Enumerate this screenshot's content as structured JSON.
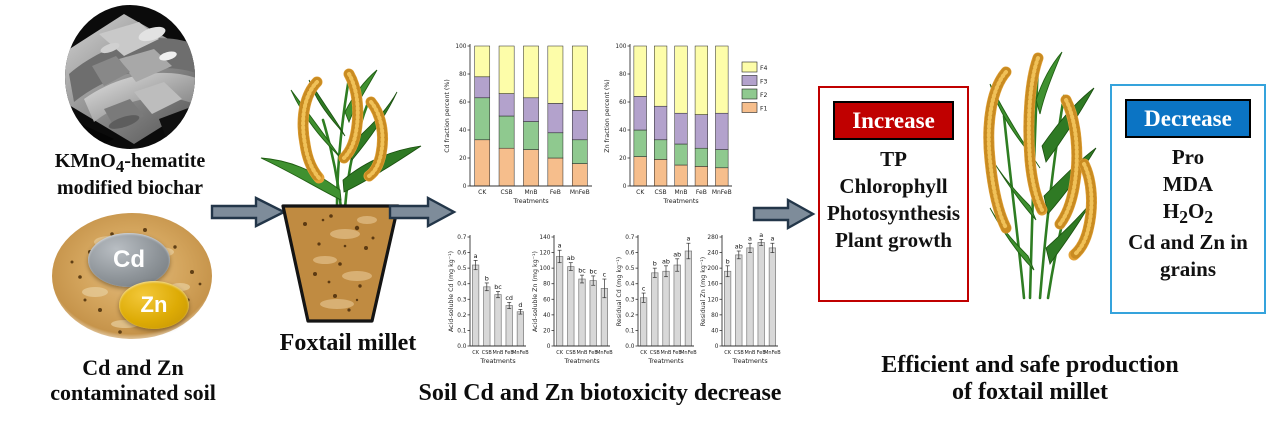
{
  "left_panel": {
    "biochar_label_line1": "KMnO<sub>4</sub>-hematite",
    "biochar_label_line2": "modified biochar",
    "cd_badge": "Cd",
    "zn_badge": "Zn",
    "soil_label_line1": "Cd and Zn",
    "soil_label_line2": "contaminated soil"
  },
  "middle": {
    "plant_label": "Foxtail millet",
    "charts_caption": "Soil Cd and Zn biotoxicity decrease"
  },
  "right": {
    "increase": {
      "title": "Increase",
      "items": [
        "TP",
        "Chlorophyll",
        "Photosynthesis",
        "Plant growth"
      ]
    },
    "decrease": {
      "title": "Decrease",
      "items": [
        "Pro",
        "MDA",
        "H<sub>2</sub>O<sub>2</sub>",
        "Cd and Zn in grains"
      ]
    },
    "caption_line1": "Efficient and safe production",
    "caption_line2": "of foxtail millet"
  },
  "colors": {
    "increase_accent": "#C00000",
    "decrease_border": "#35A3DC",
    "decrease_button": "#0B74C4",
    "arrow_fill": "#7E8C9A",
    "arrow_stroke": "#233649",
    "bar_fill": "#D8D8D8"
  },
  "chart_data": [
    {
      "id": "cd_fraction",
      "type": "stacked_bar",
      "ylabel": "Cd fraction percent (%)",
      "xlabel": "Treatments",
      "ylim": [
        0,
        100
      ],
      "yticks": [
        0,
        20,
        40,
        60,
        80,
        100
      ],
      "categories": [
        "CK",
        "CSB",
        "MnB",
        "FeB",
        "MnFeB"
      ],
      "series": [
        {
          "name": "F1",
          "color": "#F6BE8C",
          "values": [
            33,
            27,
            26,
            20,
            16
          ]
        },
        {
          "name": "F2",
          "color": "#8FC98F",
          "values": [
            30,
            23,
            20,
            18,
            17
          ]
        },
        {
          "name": "F3",
          "color": "#B3A2CC",
          "values": [
            15,
            16,
            17,
            21,
            21
          ]
        },
        {
          "name": "F4",
          "color": "#FDFDA9",
          "values": [
            22,
            34,
            37,
            41,
            46
          ]
        }
      ],
      "legend": false
    },
    {
      "id": "zn_fraction",
      "type": "stacked_bar",
      "ylabel": "Zn fraction percent (%)",
      "xlabel": "Treatments",
      "ylim": [
        0,
        100
      ],
      "yticks": [
        0,
        20,
        40,
        60,
        80,
        100
      ],
      "categories": [
        "CK",
        "CSB",
        "MnB",
        "FeB",
        "MnFeB"
      ],
      "series": [
        {
          "name": "F1",
          "color": "#F6BE8C",
          "values": [
            21,
            19,
            15,
            14,
            13
          ]
        },
        {
          "name": "F2",
          "color": "#8FC98F",
          "values": [
            19,
            14,
            15,
            13,
            13
          ]
        },
        {
          "name": "F3",
          "color": "#B3A2CC",
          "values": [
            24,
            24,
            22,
            24,
            26
          ]
        },
        {
          "name": "F4",
          "color": "#FDFDA9",
          "values": [
            36,
            43,
            48,
            49,
            48
          ]
        }
      ],
      "legend": true,
      "legend_position": "right"
    },
    {
      "id": "acid_cd",
      "type": "bar",
      "ylabel": "Acid-soluble Cd (mg kg⁻¹)",
      "xlabel": "Treatments",
      "ylim": [
        0,
        0.7
      ],
      "yticks": [
        0,
        0.1,
        0.2,
        0.3,
        0.4,
        0.5,
        0.6,
        0.7
      ],
      "ytick_labels": [
        "0.0",
        "0.1",
        "0.2",
        "0.3",
        "0.4",
        "0.5",
        "0.6",
        "0.7"
      ],
      "categories": [
        "CK",
        "CSB",
        "MnB",
        "FeB",
        "MnFeB"
      ],
      "values": [
        0.52,
        0.38,
        0.33,
        0.26,
        0.22
      ],
      "errors": [
        0.03,
        0.025,
        0.02,
        0.02,
        0.015
      ],
      "letters": [
        "a",
        "b",
        "bc",
        "cd",
        "d"
      ]
    },
    {
      "id": "acid_zn",
      "type": "bar",
      "ylabel": "Acid-soluble Zn (mg kg⁻¹)",
      "xlabel": "Treatments",
      "ylim": [
        0,
        140
      ],
      "yticks": [
        0,
        20,
        40,
        60,
        80,
        100,
        120,
        140
      ],
      "categories": [
        "CK",
        "CSB",
        "MnB",
        "FeB",
        "MnFeB"
      ],
      "values": [
        115,
        102,
        86,
        84,
        74
      ],
      "errors": [
        8,
        5,
        5,
        6,
        12
      ],
      "letters": [
        "a",
        "ab",
        "bc",
        "bc",
        "c"
      ]
    },
    {
      "id": "residual_cd",
      "type": "bar",
      "ylabel": "Residual Cd (mg kg⁻¹)",
      "xlabel": "Treatments",
      "ylim": [
        0,
        0.7
      ],
      "yticks": [
        0,
        0.1,
        0.2,
        0.3,
        0.4,
        0.5,
        0.6,
        0.7
      ],
      "ytick_labels": [
        "0.0",
        "0.1",
        "0.2",
        "0.3",
        "0.4",
        "0.5",
        "0.6",
        "0.7"
      ],
      "categories": [
        "CK",
        "CSB",
        "MnB",
        "FeB",
        "MnFeB"
      ],
      "values": [
        0.31,
        0.47,
        0.48,
        0.52,
        0.61
      ],
      "errors": [
        0.03,
        0.03,
        0.035,
        0.04,
        0.05
      ],
      "letters": [
        "c",
        "b",
        "ab",
        "ab",
        "a"
      ]
    },
    {
      "id": "residual_zn",
      "type": "bar",
      "ylabel": "Residual Zn (mg kg⁻¹)",
      "xlabel": "Treatments",
      "ylim": [
        0,
        280
      ],
      "yticks": [
        0,
        40,
        80,
        120,
        160,
        200,
        240,
        280
      ],
      "categories": [
        "CK",
        "CSB",
        "MnB",
        "FeB",
        "MnFeB"
      ],
      "values": [
        192,
        234,
        252,
        266,
        252
      ],
      "errors": [
        14,
        10,
        12,
        8,
        12
      ],
      "letters": [
        "b",
        "ab",
        "a",
        "a",
        "a"
      ]
    }
  ]
}
